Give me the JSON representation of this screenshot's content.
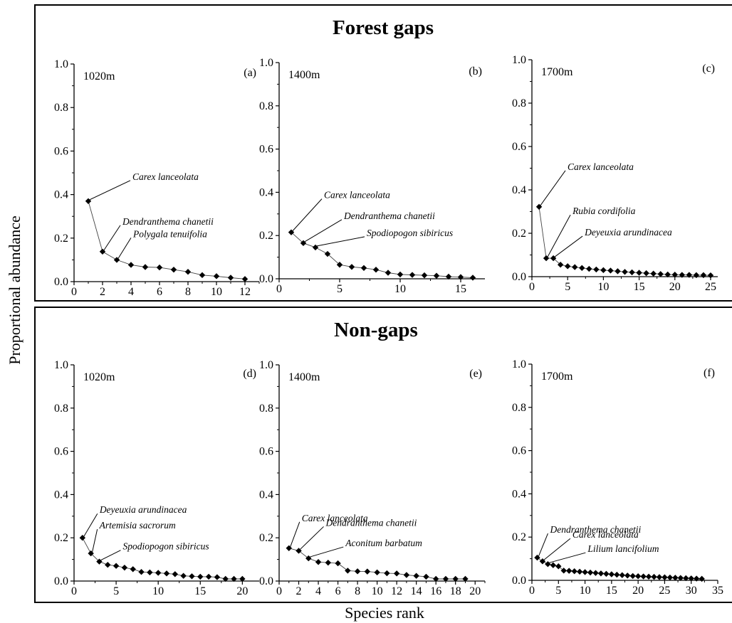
{
  "figure": {
    "ylabel": "Proportional abundance",
    "xlabel": "Species rank",
    "sections": [
      {
        "title": "Forest gaps"
      },
      {
        "title": "Non-gaps"
      }
    ]
  },
  "chart_data": [
    {
      "type": "line",
      "section": "Forest gaps",
      "panel_label": "(a)",
      "elevation": "1020m",
      "xlim": [
        0,
        13
      ],
      "ylim": [
        0,
        1.0
      ],
      "xticks": [
        0,
        2,
        4,
        6,
        8,
        10,
        12
      ],
      "yticks": [
        0.0,
        0.2,
        0.4,
        0.6,
        0.8,
        1.0
      ],
      "x": [
        1,
        2,
        3,
        4,
        5,
        6,
        7,
        8,
        9,
        10,
        11,
        12
      ],
      "y": [
        0.37,
        0.138,
        0.1,
        0.077,
        0.067,
        0.065,
        0.055,
        0.045,
        0.03,
        0.025,
        0.018,
        0.012
      ],
      "annotations": [
        {
          "text": "Carex lanceolata",
          "x": 1,
          "y": 0.37
        },
        {
          "text": "Dendranthema chanetii",
          "x": 2,
          "y": 0.138
        },
        {
          "text": "Polygala tenuifolia",
          "x": 3,
          "y": 0.1
        }
      ]
    },
    {
      "type": "line",
      "section": "Forest gaps",
      "panel_label": "(b)",
      "elevation": "1400m",
      "xlim": [
        0,
        17
      ],
      "ylim": [
        0,
        1.0
      ],
      "xticks": [
        0,
        5,
        10,
        15
      ],
      "yticks": [
        0.0,
        0.2,
        0.4,
        0.6,
        0.8,
        1.0
      ],
      "x": [
        1,
        2,
        3,
        4,
        5,
        6,
        7,
        8,
        9,
        10,
        11,
        12,
        13,
        14,
        15,
        16
      ],
      "y": [
        0.215,
        0.165,
        0.145,
        0.115,
        0.065,
        0.055,
        0.05,
        0.042,
        0.028,
        0.02,
        0.018,
        0.016,
        0.014,
        0.01,
        0.008,
        0.005
      ],
      "annotations": [
        {
          "text": "Carex lanceolata",
          "x": 1,
          "y": 0.215
        },
        {
          "text": "Dendranthema chanetii",
          "x": 2,
          "y": 0.165
        },
        {
          "text": "Spodiopogon sibiricus",
          "x": 3,
          "y": 0.145
        }
      ]
    },
    {
      "type": "line",
      "section": "Forest gaps",
      "panel_label": "(c)",
      "elevation": "1700m",
      "xlim": [
        0,
        26
      ],
      "ylim": [
        0,
        1.0
      ],
      "xticks": [
        0,
        5,
        10,
        15,
        20,
        25
      ],
      "yticks": [
        0.0,
        0.2,
        0.4,
        0.6,
        0.8,
        1.0
      ],
      "x": [
        1,
        2,
        3,
        4,
        5,
        6,
        7,
        8,
        9,
        10,
        11,
        12,
        13,
        14,
        15,
        16,
        17,
        18,
        19,
        20,
        21,
        22,
        23,
        24,
        25
      ],
      "y": [
        0.322,
        0.085,
        0.085,
        0.055,
        0.048,
        0.044,
        0.04,
        0.036,
        0.033,
        0.03,
        0.028,
        0.025,
        0.022,
        0.02,
        0.018,
        0.016,
        0.014,
        0.012,
        0.01,
        0.009,
        0.008,
        0.008,
        0.007,
        0.007,
        0.006
      ],
      "annotations": [
        {
          "text": "Carex lanceolata",
          "x": 1,
          "y": 0.322
        },
        {
          "text": "Rubia cordifolia",
          "x": 2,
          "y": 0.085
        },
        {
          "text": "Deyeuxia arundinacea",
          "x": 3,
          "y": 0.085
        }
      ]
    },
    {
      "type": "line",
      "section": "Non-gaps",
      "panel_label": "(d)",
      "elevation": "1020m",
      "xlim": [
        0,
        22
      ],
      "ylim": [
        0,
        1.0
      ],
      "xticks": [
        0,
        5,
        10,
        15,
        20
      ],
      "yticks": [
        0.0,
        0.2,
        0.4,
        0.6,
        0.8,
        1.0
      ],
      "x": [
        1,
        2,
        3,
        4,
        5,
        6,
        7,
        8,
        9,
        10,
        11,
        12,
        13,
        14,
        15,
        16,
        17,
        18,
        19,
        20
      ],
      "y": [
        0.2,
        0.128,
        0.09,
        0.075,
        0.07,
        0.062,
        0.055,
        0.042,
        0.04,
        0.038,
        0.035,
        0.032,
        0.024,
        0.022,
        0.02,
        0.02,
        0.018,
        0.01,
        0.01,
        0.01
      ],
      "annotations": [
        {
          "text": "Deyeuxia arundinacea",
          "x": 1,
          "y": 0.2
        },
        {
          "text": "Artemisia  sacrorum",
          "x": 2,
          "y": 0.128
        },
        {
          "text": "Spodiopogon sibiricus",
          "x": 3,
          "y": 0.09
        }
      ]
    },
    {
      "type": "line",
      "section": "Non-gaps",
      "panel_label": "(e)",
      "elevation": "1400m",
      "xlim": [
        0,
        21
      ],
      "ylim": [
        0,
        1.0
      ],
      "xticks": [
        0,
        2,
        4,
        6,
        8,
        10,
        12,
        14,
        16,
        18,
        20
      ],
      "yticks": [
        0.0,
        0.2,
        0.4,
        0.6,
        0.8,
        1.0
      ],
      "x": [
        1,
        2,
        3,
        4,
        5,
        6,
        7,
        8,
        9,
        10,
        11,
        12,
        13,
        14,
        15,
        16,
        17,
        18,
        19
      ],
      "y": [
        0.152,
        0.14,
        0.105,
        0.088,
        0.085,
        0.082,
        0.048,
        0.045,
        0.044,
        0.04,
        0.036,
        0.035,
        0.028,
        0.024,
        0.02,
        0.01,
        0.01,
        0.01,
        0.01
      ],
      "annotations": [
        {
          "text": "Carex lanceolata",
          "x": 1,
          "y": 0.152
        },
        {
          "text": "Dendranthema chanetii",
          "x": 2,
          "y": 0.14
        },
        {
          "text": "Aconitum barbatum",
          "x": 3,
          "y": 0.105
        }
      ]
    },
    {
      "type": "line",
      "section": "Non-gaps",
      "panel_label": "(f)",
      "elevation": "1700m",
      "xlim": [
        0,
        35
      ],
      "ylim": [
        0,
        1.0
      ],
      "xticks": [
        0,
        5,
        10,
        15,
        20,
        25,
        30,
        35
      ],
      "yticks": [
        0.0,
        0.2,
        0.4,
        0.6,
        0.8,
        1.0
      ],
      "x": [
        1,
        2,
        3,
        4,
        5,
        6,
        7,
        8,
        9,
        10,
        11,
        12,
        13,
        14,
        15,
        16,
        17,
        18,
        19,
        20,
        21,
        22,
        23,
        24,
        25,
        26,
        27,
        28,
        29,
        30,
        31,
        32
      ],
      "y": [
        0.105,
        0.088,
        0.075,
        0.07,
        0.065,
        0.045,
        0.044,
        0.042,
        0.04,
        0.038,
        0.036,
        0.034,
        0.032,
        0.03,
        0.028,
        0.026,
        0.024,
        0.022,
        0.02,
        0.019,
        0.018,
        0.017,
        0.016,
        0.015,
        0.014,
        0.013,
        0.012,
        0.011,
        0.01,
        0.009,
        0.008,
        0.007
      ],
      "annotations": [
        {
          "text": "Dendranthema chanetii",
          "x": 1,
          "y": 0.105
        },
        {
          "text": "Carex lanceolata",
          "x": 2,
          "y": 0.088
        },
        {
          "text": "Lilium lancifolium",
          "x": 3,
          "y": 0.075
        }
      ]
    }
  ]
}
